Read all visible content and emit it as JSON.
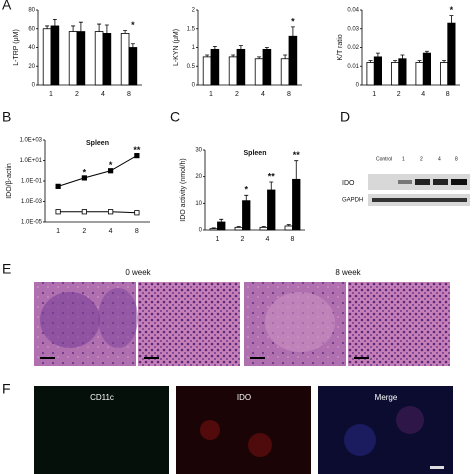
{
  "figure": {
    "panel_labels": [
      "A",
      "B",
      "C",
      "D",
      "E",
      "F"
    ],
    "blot": {
      "lanes": [
        "Control",
        "1",
        "2",
        "4",
        "8"
      ],
      "rows": [
        "IDO",
        "GAPDH"
      ]
    },
    "histology": [
      "0 week",
      "8 week"
    ],
    "fluorescence": [
      "CD11c",
      "IDO",
      "Merge"
    ]
  },
  "chart_data": [
    {
      "type": "bar",
      "y_label": "L-TRP (μM)",
      "categories": [
        "1",
        "2",
        "4",
        "8"
      ],
      "series": [
        {
          "color": "#ffffff",
          "values": [
            60,
            57,
            57,
            55
          ],
          "errors": [
            3,
            6,
            8,
            3
          ]
        },
        {
          "color": "#000000",
          "values": [
            63,
            57,
            55,
            40
          ],
          "errors": [
            7,
            10,
            9,
            4
          ]
        }
      ],
      "ylim": [
        0,
        80
      ],
      "yticks": [
        0,
        20,
        40,
        60,
        80
      ],
      "annotations": [
        {
          "text": "*",
          "x": "8"
        }
      ]
    },
    {
      "type": "bar",
      "y_label": "L-KYN (μM)",
      "categories": [
        "1",
        "2",
        "4",
        "8"
      ],
      "series": [
        {
          "color": "#ffffff",
          "values": [
            0.75,
            0.75,
            0.7,
            0.7
          ],
          "errors": [
            0.05,
            0.05,
            0.05,
            0.1
          ]
        },
        {
          "color": "#000000",
          "values": [
            0.95,
            0.95,
            0.95,
            1.3
          ],
          "errors": [
            0.08,
            0.1,
            0.05,
            0.25
          ]
        }
      ],
      "ylim": [
        0,
        2
      ],
      "yticks": [
        0,
        0.5,
        1,
        1.5,
        2
      ],
      "annotations": [
        {
          "text": "*",
          "x": "8"
        }
      ]
    },
    {
      "type": "bar",
      "y_label": "K/T ratio",
      "categories": [
        "1",
        "2",
        "4",
        "8"
      ],
      "series": [
        {
          "color": "#ffffff",
          "values": [
            0.012,
            0.012,
            0.012,
            0.012
          ],
          "errors": [
            0.001,
            0.001,
            0.001,
            0.001
          ]
        },
        {
          "color": "#000000",
          "values": [
            0.015,
            0.014,
            0.017,
            0.033
          ],
          "errors": [
            0.002,
            0.002,
            0.001,
            0.004
          ]
        }
      ],
      "ylim": [
        0,
        0.04
      ],
      "yticks": [
        0,
        0.01,
        0.02,
        0.03,
        0.04
      ],
      "annotations": [
        {
          "text": "*",
          "x": "8"
        }
      ]
    },
    {
      "type": "line",
      "y_label": "IDO/β-actin",
      "log_y": true,
      "categories": [
        "1",
        "2",
        "4",
        "8"
      ],
      "series": [
        {
          "color": "#000000",
          "marker": "filled",
          "values": [
            0.03,
            0.2,
            1,
            30
          ]
        },
        {
          "color": "#000000",
          "marker": "open",
          "values": [
            0.0001,
            0.0001,
            0.0001,
            8e-05
          ]
        }
      ],
      "ylim": [
        1e-05,
        1000
      ],
      "yticks": [
        {
          "value": 1e-05,
          "label": "1.0E-05"
        },
        {
          "value": 0.001,
          "label": "1.0E-03"
        },
        {
          "value": 0.1,
          "label": "1.0E-01"
        },
        {
          "value": 10,
          "label": "1.0E+01"
        },
        {
          "value": 1000,
          "label": "1.0E+03"
        }
      ],
      "subtitle": "Spleen",
      "annotations": [
        {
          "text": "*",
          "x": "2"
        },
        {
          "text": "*",
          "x": "4"
        },
        {
          "text": "**",
          "x": "8"
        }
      ]
    },
    {
      "type": "bar",
      "y_label": "IDO activity (nmol/h)",
      "categories": [
        "1",
        "2",
        "4",
        "8"
      ],
      "series": [
        {
          "color": "#ffffff",
          "values": [
            0.5,
            1,
            1,
            1.5
          ],
          "errors": [
            0.3,
            0.3,
            0.3,
            0.5
          ]
        },
        {
          "color": "#000000",
          "values": [
            3,
            11,
            15,
            19
          ],
          "errors": [
            1,
            2,
            3,
            7
          ]
        }
      ],
      "ylim": [
        0,
        30
      ],
      "yticks": [
        0,
        10,
        20,
        30
      ],
      "subtitle": "Spleen",
      "annotations": [
        {
          "text": "*",
          "x": "2"
        },
        {
          "text": "**",
          "x": "4"
        },
        {
          "text": "**",
          "x": "8"
        }
      ]
    }
  ]
}
